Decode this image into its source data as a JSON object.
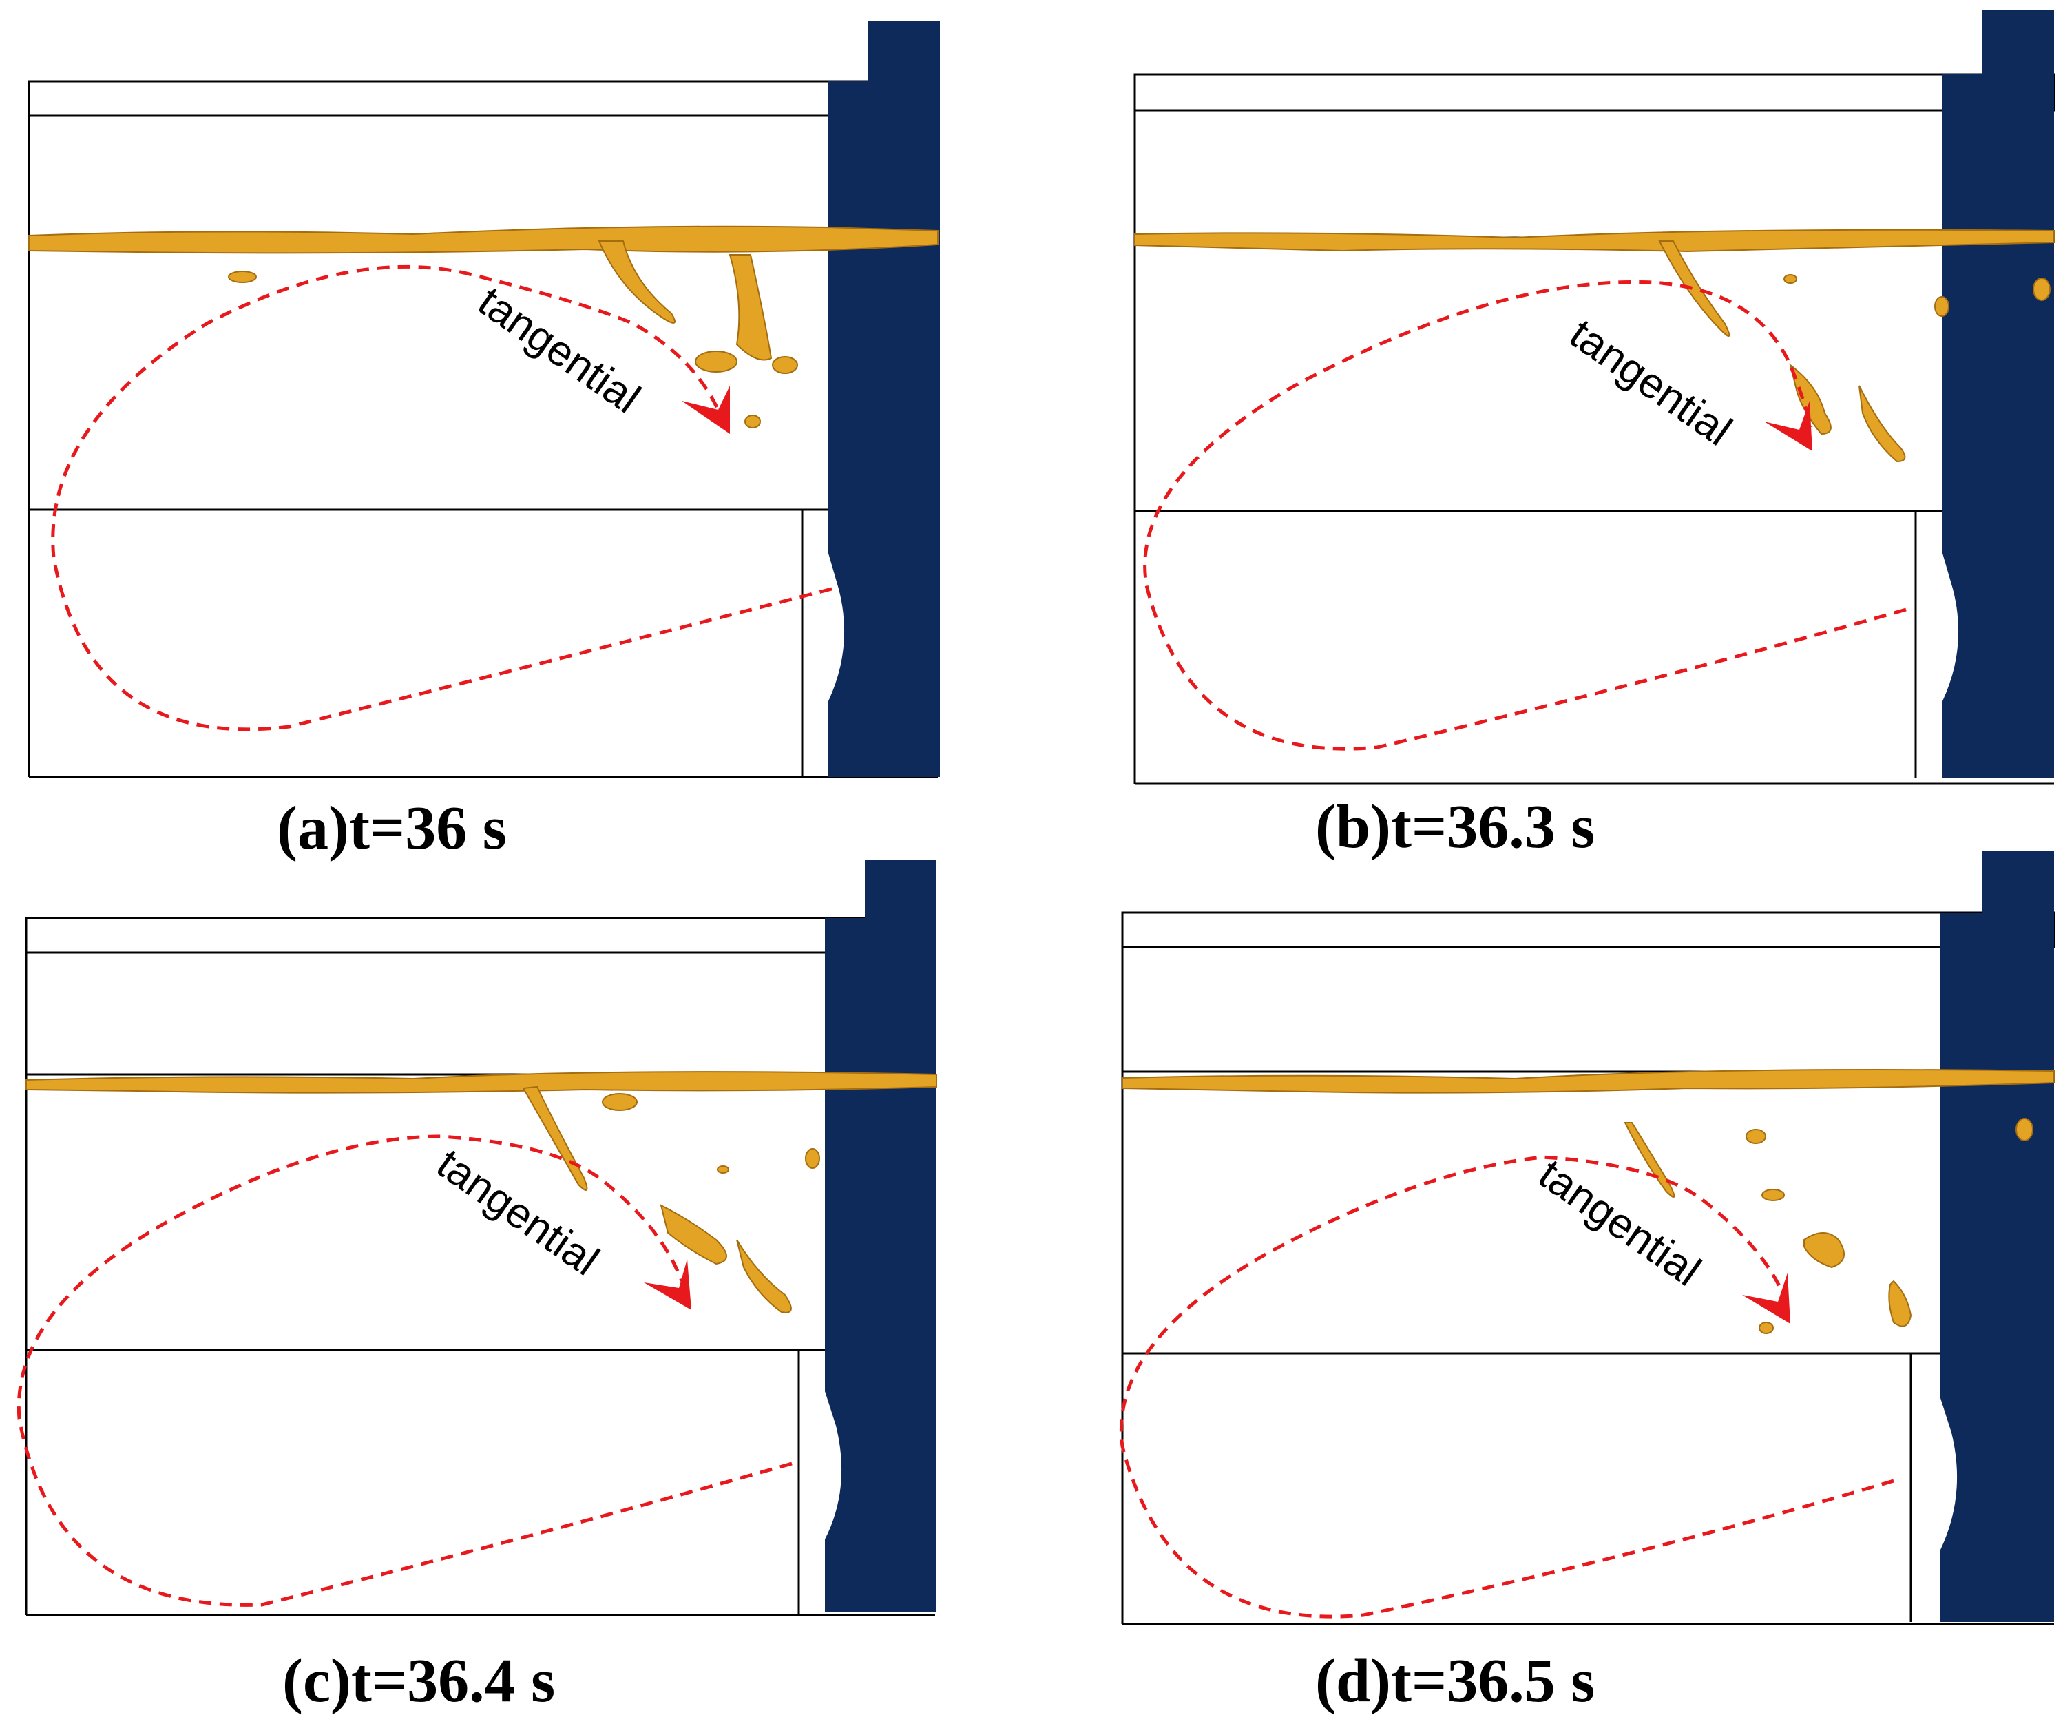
{
  "panels": [
    {
      "id": "a",
      "caption": "(a)t=36 s",
      "arrow_label": "tangential"
    },
    {
      "id": "b",
      "caption": "(b)t=36.3 s",
      "arrow_label": "tangential"
    },
    {
      "id": "c",
      "caption": "(c)t=36.4 s",
      "arrow_label": "tangential"
    },
    {
      "id": "d",
      "caption": "(d)t=36.5 s",
      "arrow_label": "tangential"
    }
  ],
  "colors": {
    "wall": "#0d2a5b",
    "slag_droplets": "#e3a324",
    "flow_path": "#e8191c",
    "frame": "#000000"
  }
}
